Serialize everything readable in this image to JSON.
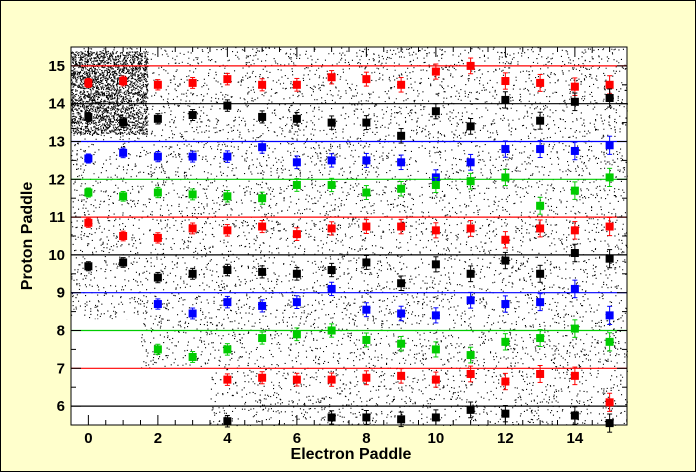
{
  "chart_data": {
    "type": "scatter",
    "xlabel": "Electron Paddle",
    "ylabel": "Proton Paddle",
    "xlim": [
      -0.5,
      15.5
    ],
    "ylim": [
      5.5,
      15.5
    ],
    "x_ticks": [
      "0",
      "2",
      "4",
      "6",
      "8",
      "10",
      "12",
      "14"
    ],
    "y_ticks": [
      "6",
      "7",
      "8",
      "9",
      "10",
      "11",
      "12",
      "13",
      "14",
      "15"
    ],
    "reference_lines": [
      {
        "y": 6,
        "color": "#000000"
      },
      {
        "y": 7,
        "color": "#ff0000"
      },
      {
        "y": 8,
        "color": "#00cc00"
      },
      {
        "y": 9,
        "color": "#0000ff"
      },
      {
        "y": 10,
        "color": "#000000"
      },
      {
        "y": 11,
        "color": "#ff0000"
      },
      {
        "y": 12,
        "color": "#00cc00"
      },
      {
        "y": 13,
        "color": "#0000ff"
      },
      {
        "y": 14,
        "color": "#000000"
      },
      {
        "y": 15,
        "color": "#ff0000"
      }
    ],
    "series": [
      {
        "color": "#ff0000",
        "points": [
          [
            0,
            14.55
          ],
          [
            1,
            14.6
          ],
          [
            2,
            14.5
          ],
          [
            3,
            14.55
          ],
          [
            4,
            14.65
          ],
          [
            5,
            14.5
          ],
          [
            6,
            14.5
          ],
          [
            7,
            14.7
          ],
          [
            8,
            14.65
          ],
          [
            9,
            14.5
          ],
          [
            10,
            14.85
          ],
          [
            11,
            15.0
          ],
          [
            12,
            14.6
          ],
          [
            13,
            14.55
          ],
          [
            14,
            14.45
          ],
          [
            15,
            14.5
          ]
        ]
      },
      {
        "color": "#000000",
        "points": [
          [
            0,
            13.65
          ],
          [
            1,
            13.5
          ],
          [
            2,
            13.6
          ],
          [
            3,
            13.7
          ],
          [
            4,
            13.95
          ],
          [
            5,
            13.65
          ],
          [
            6,
            13.6
          ],
          [
            7,
            13.5
          ],
          [
            8,
            13.5
          ],
          [
            9,
            13.15
          ],
          [
            10,
            13.8
          ],
          [
            11,
            13.4
          ],
          [
            12,
            14.1
          ],
          [
            13,
            13.55
          ],
          [
            14,
            14.05
          ],
          [
            15,
            14.15
          ]
        ]
      },
      {
        "color": "#0000ff",
        "points": [
          [
            0,
            12.55
          ],
          [
            1,
            12.7
          ],
          [
            2,
            12.6
          ],
          [
            3,
            12.6
          ],
          [
            4,
            12.6
          ],
          [
            5,
            12.85
          ],
          [
            6,
            12.45
          ],
          [
            7,
            12.5
          ],
          [
            8,
            12.5
          ],
          [
            9,
            12.45
          ],
          [
            10,
            12.05
          ],
          [
            11,
            12.45
          ],
          [
            12,
            12.8
          ],
          [
            13,
            12.8
          ],
          [
            14,
            12.75
          ],
          [
            15,
            12.9
          ]
        ]
      },
      {
        "color": "#00cc00",
        "points": [
          [
            0,
            11.65
          ],
          [
            1,
            11.55
          ],
          [
            2,
            11.65
          ],
          [
            3,
            11.6
          ],
          [
            4,
            11.55
          ],
          [
            5,
            11.5
          ],
          [
            6,
            11.85
          ],
          [
            7,
            11.85
          ],
          [
            8,
            11.65
          ],
          [
            9,
            11.75
          ],
          [
            10,
            11.85
          ],
          [
            11,
            11.95
          ],
          [
            12,
            12.05
          ],
          [
            13,
            11.3
          ],
          [
            14,
            11.7
          ],
          [
            15,
            12.05
          ]
        ]
      },
      {
        "color": "#ff0000",
        "points": [
          [
            0,
            10.85
          ],
          [
            1,
            10.5
          ],
          [
            2,
            10.45
          ],
          [
            3,
            10.7
          ],
          [
            4,
            10.65
          ],
          [
            5,
            10.75
          ],
          [
            6,
            10.55
          ],
          [
            7,
            10.7
          ],
          [
            8,
            10.75
          ],
          [
            9,
            10.75
          ],
          [
            10,
            10.65
          ],
          [
            11,
            10.7
          ],
          [
            12,
            10.4
          ],
          [
            13,
            10.7
          ],
          [
            14,
            10.65
          ],
          [
            15,
            10.75
          ]
        ]
      },
      {
        "color": "#000000",
        "points": [
          [
            0,
            9.7
          ],
          [
            1,
            9.8
          ],
          [
            2,
            9.4
          ],
          [
            3,
            9.5
          ],
          [
            4,
            9.6
          ],
          [
            5,
            9.55
          ],
          [
            6,
            9.5
          ],
          [
            7,
            9.6
          ],
          [
            8,
            9.8
          ],
          [
            9,
            9.25
          ],
          [
            10,
            9.75
          ],
          [
            11,
            9.5
          ],
          [
            12,
            9.85
          ],
          [
            13,
            9.5
          ],
          [
            14,
            10.05
          ],
          [
            15,
            9.9
          ]
        ]
      },
      {
        "color": "#0000ff",
        "points": [
          [
            2,
            8.7
          ],
          [
            3,
            8.45
          ],
          [
            4,
            8.75
          ],
          [
            5,
            8.65
          ],
          [
            6,
            8.75
          ],
          [
            7,
            9.1
          ],
          [
            8,
            8.55
          ],
          [
            9,
            8.45
          ],
          [
            10,
            8.4
          ],
          [
            11,
            8.8
          ],
          [
            12,
            8.7
          ],
          [
            13,
            8.75
          ],
          [
            14,
            9.1
          ],
          [
            15,
            8.4
          ]
        ]
      },
      {
        "color": "#00cc00",
        "points": [
          [
            2,
            7.5
          ],
          [
            3,
            7.3
          ],
          [
            4,
            7.5
          ],
          [
            5,
            7.8
          ],
          [
            6,
            7.9
          ],
          [
            7,
            8.0
          ],
          [
            8,
            7.75
          ],
          [
            9,
            7.65
          ],
          [
            10,
            7.5
          ],
          [
            11,
            7.35
          ],
          [
            12,
            7.7
          ],
          [
            13,
            7.8
          ],
          [
            14,
            8.05
          ],
          [
            15,
            7.7
          ]
        ]
      },
      {
        "color": "#ff0000",
        "points": [
          [
            4,
            6.7
          ],
          [
            5,
            6.75
          ],
          [
            6,
            6.7
          ],
          [
            7,
            6.7
          ],
          [
            8,
            6.75
          ],
          [
            9,
            6.8
          ],
          [
            10,
            6.7
          ],
          [
            11,
            6.85
          ],
          [
            12,
            6.65
          ],
          [
            13,
            6.85
          ],
          [
            14,
            6.8
          ],
          [
            15,
            6.1
          ]
        ]
      },
      {
        "color": "#000000",
        "points": [
          [
            4,
            5.6
          ],
          [
            7,
            5.7
          ],
          [
            8,
            5.7
          ],
          [
            9,
            5.65
          ],
          [
            10,
            5.7
          ],
          [
            11,
            5.9
          ],
          [
            12,
            5.8
          ],
          [
            14,
            5.75
          ],
          [
            15,
            5.55
          ]
        ]
      }
    ]
  }
}
